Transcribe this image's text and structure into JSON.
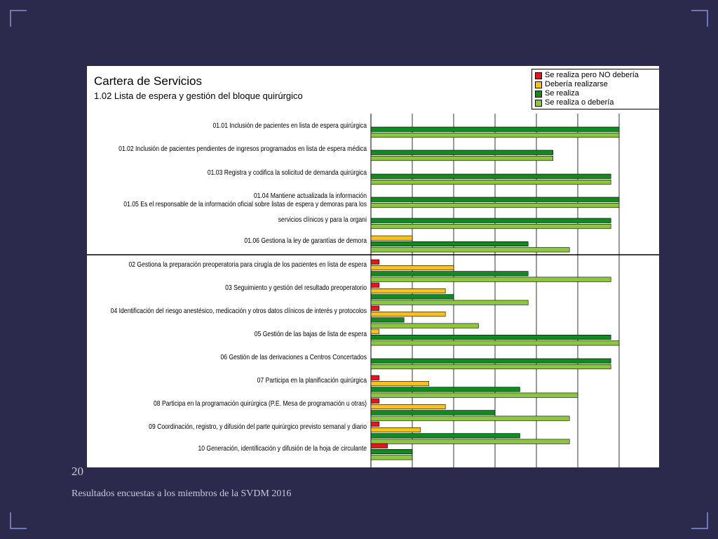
{
  "slide": {
    "number": "20",
    "caption": "Resultados encuestas a los miembros de la SVDM 2016"
  },
  "chart_data": {
    "type": "bar",
    "orientation": "horizontal",
    "title": "Cartera de Servicios",
    "subtitle": "1.02  Lista de espera y gestión del bloque quirúrgico",
    "legend_position": "top-right",
    "grid": true,
    "xlim": [
      0,
      100
    ],
    "series": [
      {
        "name": "Se realiza pero NO debería",
        "color": "#e8141b"
      },
      {
        "name": "Debería realizarse",
        "color": "#f7c21d"
      },
      {
        "name": "Se realiza",
        "color": "#118a1f"
      },
      {
        "name": "Se realiza o debería",
        "color": "#8cc63e"
      }
    ],
    "categories": [
      "01.01 Inclusión de pacientes en lista de espera quirúrgica",
      "01.02 Inclusión de pacientes pendientes de ingresos programados en lista de espera médica",
      "01.03 Registra y codifica la solicitud de demanda quirúrgica",
      "01.04 Mantiene actualizada la información",
      "01.05 Es el responsable de la información oficial sobre listas de espera y demoras para los servicios clínicos y para la organi",
      "01.06 Gestiona la ley de garantías de demora",
      "02 Gestiona la preparación preoperatoria para cirugía de los pacientes en lista de espera",
      "03 Seguimiento y gestión del resultado preoperatorio",
      "04 Identificación del riesgo anestésico, medicación y otros datos clínicos de interés y protocolos",
      "05 Gestión de las bajas de lista de espera",
      "06 Gestión de las derivaciones a Centros Concertados",
      "07 Participa en la planificación quirúrgica",
      "08 Participa en la programación quirúrgica (P.E. Mesa de programación u otras)",
      "09 Coordinación, registro, y difusión del parte quirúrgico previsto semanal y diario",
      "10 Generación, identificación y difusión de la hoja de circulante"
    ],
    "groups": [
      {
        "label_lines": [
          "01.01 Inclusión de pacientes en lista de espera quirúrgica"
        ],
        "bars": [
          [
            2,
            60
          ],
          [
            3,
            60
          ]
        ]
      },
      {
        "label_lines": [
          "01.02 Inclusión de pacientes pendientes de ingresos programados en lista de espera médica"
        ],
        "bars": [
          [
            2,
            44
          ],
          [
            3,
            44
          ]
        ]
      },
      {
        "label_lines": [
          "01.03 Registra y codifica la solicitud de demanda quirúrgica"
        ],
        "bars": [
          [
            2,
            58
          ],
          [
            3,
            58
          ]
        ]
      },
      {
        "label_lines": [
          "01.04 Mantiene actualizada la información"
        ],
        "bars": [
          [
            2,
            60
          ],
          [
            3,
            60
          ]
        ]
      },
      {
        "label_lines": [
          "01.05 Es el responsable de la información oficial sobre listas de espera y demoras para los",
          "servicios clínicos y para la organi"
        ],
        "bars": [
          [
            2,
            58
          ],
          [
            3,
            58
          ]
        ]
      },
      {
        "label_lines": [
          "01.06 Gestiona la ley de garantías de demora"
        ],
        "bars": [
          [
            1,
            10
          ],
          [
            2,
            38
          ],
          [
            3,
            48
          ]
        ]
      },
      {
        "label_lines": [
          "02 Gestiona la preparación preoperatoria para cirugía de los pacientes en lista de espera"
        ],
        "bars": [
          [
            0,
            2
          ],
          [
            1,
            20
          ],
          [
            2,
            38
          ],
          [
            3,
            58
          ]
        ]
      },
      {
        "label_lines": [
          "03 Seguimiento y gestión del resultado preoperatorio"
        ],
        "bars": [
          [
            0,
            2
          ],
          [
            1,
            18
          ],
          [
            2,
            20
          ],
          [
            3,
            38
          ]
        ]
      },
      {
        "label_lines": [
          "04 Identificación del riesgo anestésico, medicación y otros datos clínicos de interés y protocolos"
        ],
        "bars": [
          [
            0,
            2
          ],
          [
            1,
            18
          ],
          [
            2,
            8
          ],
          [
            3,
            26
          ]
        ]
      },
      {
        "label_lines": [
          "05 Gestión de las bajas de lista de espera"
        ],
        "bars": [
          [
            1,
            2
          ],
          [
            2,
            58
          ],
          [
            3,
            60
          ]
        ]
      },
      {
        "label_lines": [
          "06 Gestión de las derivaciones a Centros Concertados"
        ],
        "bars": [
          [
            2,
            58
          ],
          [
            3,
            58
          ]
        ]
      },
      {
        "label_lines": [
          "07 Participa en la planificación quirúrgica"
        ],
        "bars": [
          [
            0,
            2
          ],
          [
            1,
            14
          ],
          [
            2,
            36
          ],
          [
            3,
            50
          ]
        ]
      },
      {
        "label_lines": [
          "08 Participa en la programación quirúrgica (P.E. Mesa de programación u otras)"
        ],
        "bars": [
          [
            0,
            2
          ],
          [
            1,
            18
          ],
          [
            2,
            30
          ],
          [
            3,
            48
          ]
        ]
      },
      {
        "label_lines": [
          "09 Coordinación, registro, y difusión del parte quirúrgico previsto semanal y diario"
        ],
        "bars": [
          [
            0,
            2
          ],
          [
            1,
            12
          ],
          [
            2,
            36
          ],
          [
            3,
            48
          ]
        ]
      },
      {
        "label_lines": [
          "10 Generación, identificación y difusión de la hoja de circulante"
        ],
        "bars": [
          [
            0,
            4
          ],
          [
            2,
            10
          ],
          [
            3,
            10
          ]
        ]
      }
    ]
  }
}
